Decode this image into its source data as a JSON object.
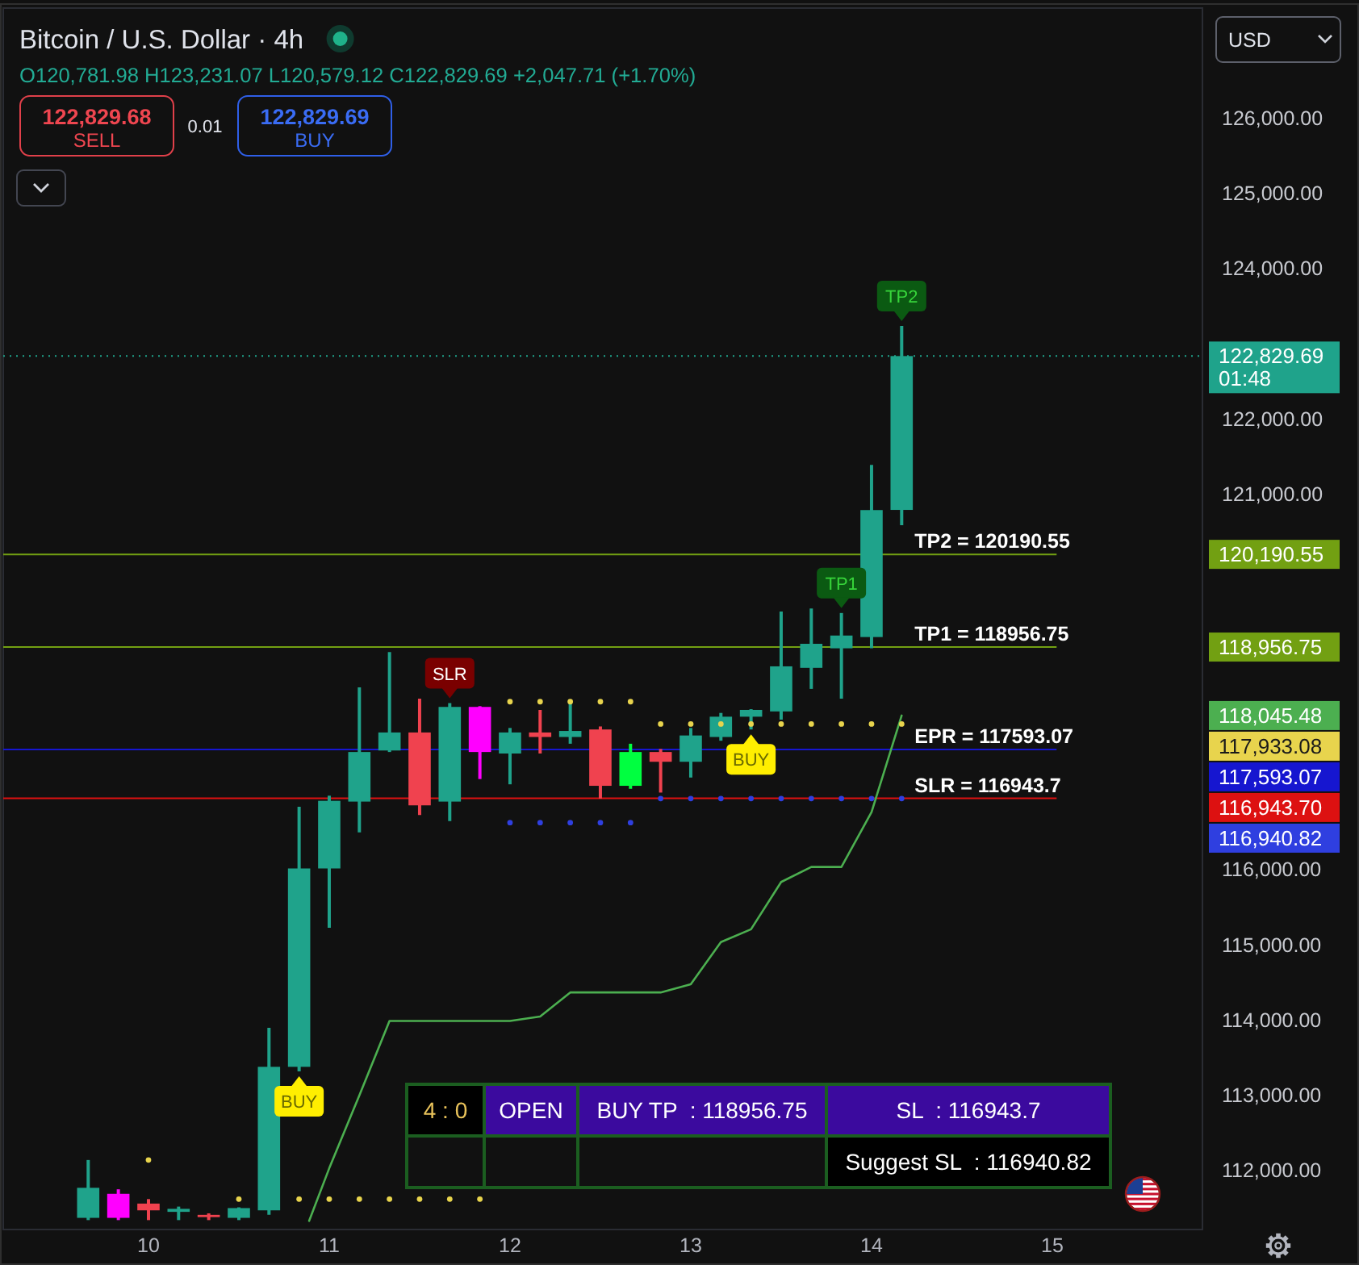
{
  "chart_data": {
    "type": "candlestick",
    "title": "Bitcoin / U.S. Dollar · 4h",
    "subtitle": "O120,781.98 H123,231.07 L120,579.12 C122,829.69 +2,047.71 (+1.70%)",
    "x": [
      "--08-09T16:00",
      "--08-09T20:00",
      "--08-10T00:00",
      "--08-10T04:00",
      "--08-10T08:00",
      "--08-10T12:00",
      "--08-10T16:00",
      "--08-10T20:00",
      "--08-11T00:00",
      "--08-11T04:00",
      "--08-11T08:00",
      "--08-11T12:00",
      "--08-11T16:00",
      "--08-11T20:00",
      "--08-12T00:00",
      "--08-12T04:00",
      "--08-12T08:00",
      "--08-12T12:00",
      "--08-12T16:00",
      "--08-12T20:00",
      "--08-13T00:00",
      "--08-13T04:00",
      "--08-13T08:00",
      "--08-13T12:00",
      "--08-13T16:00",
      "--08-13T20:00",
      "--08-14T00:00",
      "--08-14T04:00"
    ],
    "ohlc": [
      [
        111360,
        112130,
        111330,
        111760
      ],
      [
        111680,
        111740,
        111330,
        111360
      ],
      [
        111550,
        111610,
        111330,
        111460
      ],
      [
        111440,
        111510,
        111330,
        111480
      ],
      [
        111400,
        111420,
        111330,
        111370
      ],
      [
        111360,
        111500,
        111330,
        111490
      ],
      [
        111460,
        113890,
        111400,
        113370
      ],
      [
        113370,
        116830,
        113310,
        116010
      ],
      [
        116010,
        116980,
        115220,
        116910
      ],
      [
        116900,
        118420,
        116490,
        117560
      ],
      [
        117580,
        118890,
        117560,
        117820
      ],
      [
        117820,
        118270,
        116720,
        116850
      ],
      [
        116900,
        118210,
        116640,
        118160
      ],
      [
        118160,
        118170,
        117200,
        117560
      ],
      [
        117540,
        117880,
        117130,
        117820
      ],
      [
        117820,
        118120,
        117540,
        117760
      ],
      [
        117760,
        118210,
        117670,
        117840
      ],
      [
        117860,
        117900,
        116940,
        117110
      ],
      [
        117110,
        117670,
        117070,
        117560
      ],
      [
        117560,
        117600,
        117020,
        117430
      ],
      [
        117430,
        117880,
        117220,
        117780
      ],
      [
        117760,
        118080,
        117710,
        118030
      ],
      [
        118030,
        118130,
        117860,
        118120
      ],
      [
        118100,
        119430,
        117990,
        118700
      ],
      [
        118680,
        119470,
        118400,
        119000
      ],
      [
        118940,
        119410,
        118270,
        119110
      ],
      [
        119090,
        121380,
        118940,
        120780
      ],
      [
        120781.98,
        123231.07,
        120579.12,
        122829.69
      ]
    ],
    "colors": [
      "#1fa38b",
      "#ff00ff",
      "#f0424f",
      "#1fa38b",
      "#f0424f",
      "#1fa38b",
      "#1fa38b",
      "#1fa38b",
      "#1fa38b",
      "#1fa38b",
      "#1fa38b",
      "#f0424f",
      "#1fa38b",
      "#ff00ff",
      "#1fa38b",
      "#f0424f",
      "#1fa38b",
      "#f0424f",
      "#00ff40",
      "#f0424f",
      "#1fa38b",
      "#1fa38b",
      "#1fa38b",
      "#1fa38b",
      "#1fa38b",
      "#1fa38b",
      "#1fa38b",
      "#1fa38b"
    ],
    "series": [
      {
        "type": "line",
        "color": "#4caf50",
        "x": [
          "--08-10T21:20",
          "--08-11T00:00",
          "--08-11T04:00",
          "--08-11T08:00",
          "--08-11T12:00",
          "--08-11T16:00",
          "--08-11T20:00",
          "--08-12T00:00",
          "--08-12T04:00",
          "--08-12T08:00",
          "--08-12T12:00",
          "--08-12T16:00",
          "--08-12T20:00",
          "--08-13T00:00",
          "--08-13T04:00",
          "--08-13T08:00",
          "--08-13T12:00",
          "--08-13T16:00",
          "--08-13T20:00",
          "--08-14T00:00",
          "--08-14T04:00"
        ],
        "values": [
          111320,
          112020,
          112990,
          113980,
          113980,
          113980,
          113980,
          113980,
          114040,
          114360,
          114360,
          114360,
          114360,
          114470,
          115030,
          115200,
          115830,
          116030,
          116030,
          116760,
          118045.48
        ]
      },
      {
        "type": "scatter",
        "marker": "circle",
        "color": "#e8d44d",
        "values": [
          null,
          null,
          112130,
          null,
          null,
          111610,
          null,
          111610,
          111610,
          111610,
          111610,
          111610,
          111610,
          111610,
          118230,
          118230,
          118230,
          118230,
          118230,
          117933.08,
          117933.08,
          117933.08,
          117933.08,
          117933.08,
          117933.08,
          117933.08,
          117933.08,
          117933.08
        ]
      },
      {
        "type": "scatter",
        "marker": "circle",
        "color": "#2f3fe0",
        "values": [
          null,
          null,
          null,
          null,
          null,
          null,
          null,
          null,
          null,
          null,
          null,
          null,
          null,
          null,
          116620,
          116620,
          116620,
          116620,
          116620,
          116940.82,
          116940.82,
          116940.82,
          116940.82,
          116940.82,
          116940.82,
          116940.82,
          116940.82,
          116940.82
        ]
      }
    ],
    "xlim": [
      "--08-09T04:43",
      "--08-15T19:56"
    ],
    "xticks": [
      {
        "value": "--08-10",
        "label": "10"
      },
      {
        "value": "--08-11",
        "label": "11"
      },
      {
        "value": "--08-12",
        "label": "12"
      },
      {
        "value": "--08-13",
        "label": "13"
      },
      {
        "value": "--08-14",
        "label": "14"
      },
      {
        "value": "--08-15",
        "label": "15"
      }
    ],
    "ylim": [
      111205,
      127461
    ],
    "yticks": [
      {
        "value": 112000,
        "label": "112,000.00"
      },
      {
        "value": 113000,
        "label": "113,000.00"
      },
      {
        "value": 114000,
        "label": "114,000.00"
      },
      {
        "value": 115000,
        "label": "115,000.00"
      },
      {
        "value": 116000,
        "label": "116,000.00"
      },
      {
        "value": 121000,
        "label": "121,000.00"
      },
      {
        "value": 122000,
        "label": "122,000.00"
      },
      {
        "value": 124000,
        "label": "124,000.00"
      },
      {
        "value": 125000,
        "label": "125,000.00"
      },
      {
        "value": 126000,
        "label": "126,000.00"
      }
    ],
    "ref_lines": [
      {
        "axis": "y",
        "value": 122829.69,
        "label": null,
        "color": "#1fa38b",
        "line_style": "dotted"
      },
      {
        "axis": "y",
        "value": 120190.55,
        "label": "TP2 = 120190.55",
        "color": "#72a012"
      },
      {
        "axis": "y",
        "value": 118956.75,
        "label": "TP1 = 118956.75",
        "color": "#72a012"
      },
      {
        "axis": "y",
        "value": 117593.07,
        "label": "EPR = 117593.07",
        "color": "#1616d0"
      },
      {
        "axis": "y",
        "value": 116943.7,
        "label": "SLR = 116943.7",
        "color": "#dd1111"
      }
    ],
    "annotations": [
      "122,829.68",
      "SELL",
      "0.01",
      "122,829.69",
      "BUY",
      "USD",
      "4 : 0",
      "OPEN",
      "BUY TP  : 118956.75",
      "SL  : 116943.7",
      "Suggest SL  : 116940.82",
      "122,829.69\n01:48",
      "120,190.55",
      "118,956.75",
      "118,045.48",
      "117,933.08",
      "117,593.07",
      "116,943.70",
      "116,940.82",
      {
        "text": "BUY",
        "x": "--08-10T20:00",
        "y": 113310
      },
      {
        "text": "SLR",
        "x": "--08-11T16:00",
        "y": 118210
      },
      {
        "text": "BUY",
        "x": "--08-13T08:00",
        "y": 117860
      },
      {
        "text": "TP1",
        "x": "--08-13T20:00",
        "y": 119410
      },
      {
        "text": "TP2",
        "x": "--08-14T04:00",
        "y": 123231.07
      }
    ]
  }
}
